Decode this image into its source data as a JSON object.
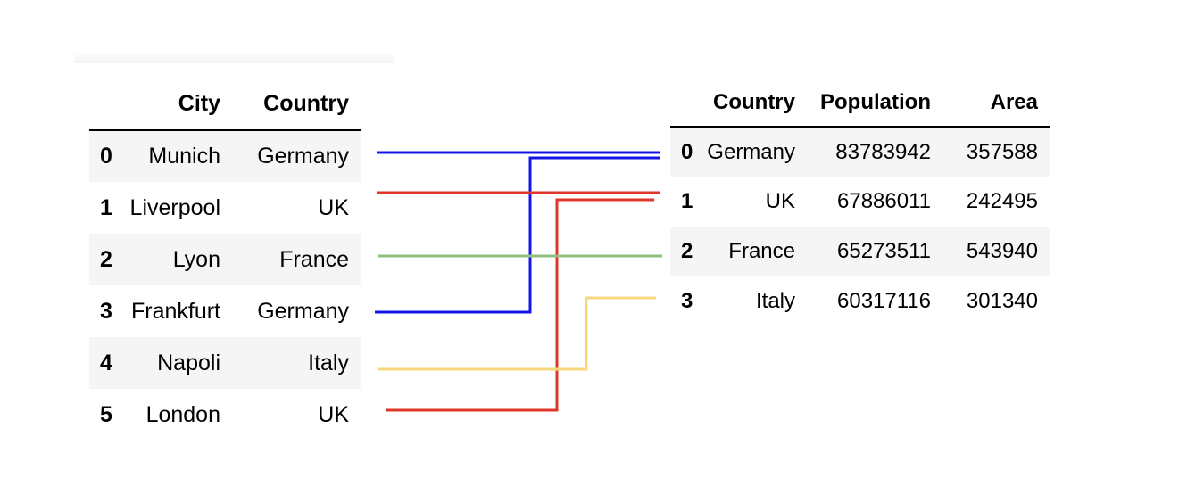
{
  "left_table": {
    "columns": [
      "City",
      "Country"
    ],
    "rows": [
      {
        "index": "0",
        "city": "Munich",
        "country": "Germany"
      },
      {
        "index": "1",
        "city": "Liverpool",
        "country": "UK"
      },
      {
        "index": "2",
        "city": "Lyon",
        "country": "France"
      },
      {
        "index": "3",
        "city": "Frankfurt",
        "country": "Germany"
      },
      {
        "index": "4",
        "city": "Napoli",
        "country": "Italy"
      },
      {
        "index": "5",
        "city": "London",
        "country": "UK"
      }
    ]
  },
  "right_table": {
    "columns": [
      "Country",
      "Population",
      "Area"
    ],
    "rows": [
      {
        "index": "0",
        "country": "Germany",
        "population": "83783942",
        "area": "357588"
      },
      {
        "index": "1",
        "country": "UK",
        "population": "67886011",
        "area": "242495"
      },
      {
        "index": "2",
        "country": "France",
        "population": "65273511",
        "area": "543940"
      },
      {
        "index": "3",
        "country": "Italy",
        "population": "60317116",
        "area": "301340"
      }
    ]
  },
  "links": [
    {
      "from_row": 0,
      "to_row": 0,
      "color": "#1414e6"
    },
    {
      "from_row": 1,
      "to_row": 1,
      "color": "#e0352a"
    },
    {
      "from_row": 2,
      "to_row": 2,
      "color": "#90c080"
    },
    {
      "from_row": 3,
      "to_row": 0,
      "color": "#1414e6"
    },
    {
      "from_row": 4,
      "to_row": 3,
      "color": "#f7d77e"
    },
    {
      "from_row": 5,
      "to_row": 1,
      "color": "#e0352a"
    }
  ]
}
